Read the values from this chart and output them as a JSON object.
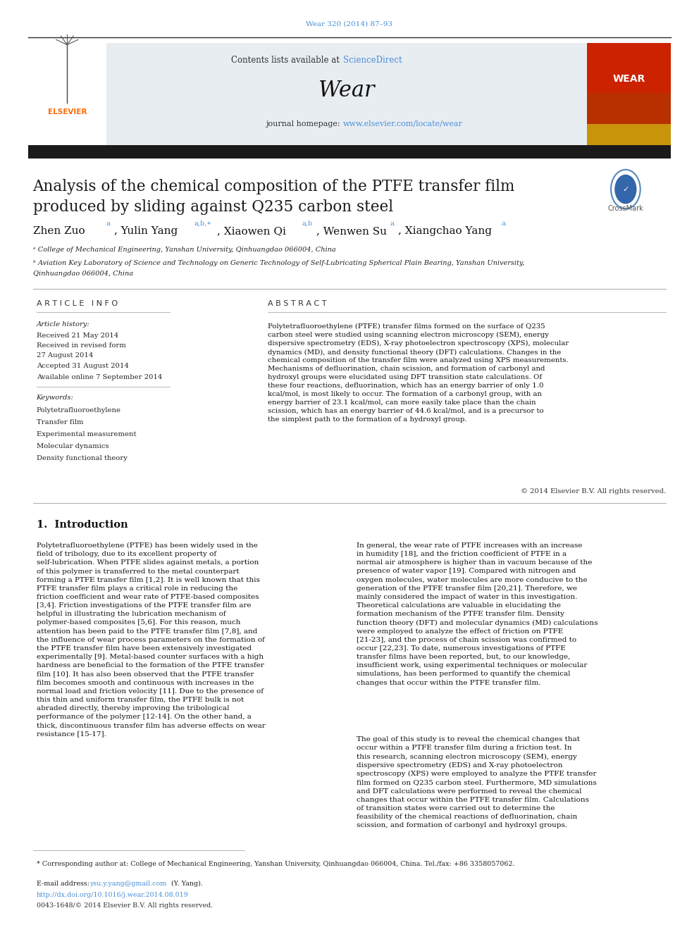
{
  "page_bg": "#ffffff",
  "header_line_color": "#2c2c2c",
  "journal_cite": "Wear 320 (2014) 87–93",
  "journal_cite_color": "#4a90d9",
  "header_bg": "#e8edf2",
  "header_text1": "Contents lists available at ",
  "sciencedirect": "ScienceDirect",
  "sciencedirect_color": "#4a90d9",
  "journal_name": "Wear",
  "journal_homepage_prefix": "journal homepage: ",
  "journal_url": "www.elsevier.com/locate/wear",
  "journal_url_color": "#4a90d9",
  "black_bar_color": "#1a1a1a",
  "title_line1": "Analysis of the chemical composition of the PTFE transfer film",
  "title_line2": "produced by sliding against Q235 carbon steel",
  "title_color": "#1a1a1a",
  "affil_a": "ᵃ College of Mechanical Engineering, Yanshan University, Qinhuangdao 066004, China",
  "affil_b": "ᵇ Aviation Key Laboratory of Science and Technology on Generic Technology of Self-Lubricating Spherical Plain Bearing, Yanshan University,",
  "affil_b2": "Qinhuangdao 066004, China",
  "article_info_title": "A R T I C L E   I N F O",
  "abstract_title": "A B S T R A C T",
  "article_history_label": "Article history:",
  "received": "Received 21 May 2014",
  "revised": "Received in revised form",
  "revised2": "27 August 2014",
  "accepted": "Accepted 31 August 2014",
  "available": "Available online 7 September 2014",
  "keywords_label": "Keywords:",
  "kw1": "Polytetrafluoroethylene",
  "kw2": "Transfer film",
  "kw3": "Experimental measurement",
  "kw4": "Molecular dynamics",
  "kw5": "Density functional theory",
  "abstract_text": "Polytetrafluoroethylene (PTFE) transfer films formed on the surface of Q235 carbon steel were studied using scanning electron microscopy (SEM), energy dispersive spectrometry (EDS), X-ray photoelectron spectroscopy (XPS), molecular dynamics (MD), and density functional theory (DFT) calculations. Changes in the chemical composition of the transfer film were analyzed using XPS measurements. Mechanisms of defluorination, chain scission, and formation of carbonyl and hydroxyl groups were elucidated using DFT transition state calculations. Of these four reactions, defluorination, which has an energy barrier of only 1.0 kcal/mol, is most likely to occur. The formation of a carbonyl group, with an energy barrier of 23.1 kcal/mol, can more easily take place than the chain scission, which has an energy barrier of 44.6 kcal/mol, and is a precursor to the simplest path to the formation of a hydroxyl group.",
  "copyright": "© 2014 Elsevier B.V. All rights reserved.",
  "intro_title": "1.  Introduction",
  "intro_col1_p1": "    Polytetrafluoroethylene (PTFE) has been widely used in the field of tribology, due to its excellent property of self-lubrication. When PTFE slides against metals, a portion of this polymer is transferred to the metal counterpart forming a PTFE transfer film [1,2]. It is well known that this PTFE transfer film plays a critical role in reducing the friction coefficient and wear rate of PTFE-based composites [3,4]. Friction investigations of the PTFE transfer film are helpful in illustrating the lubrication mechanism of polymer-based composites [5,6]. For this reason, much attention has been paid to the PTFE transfer film [7,8], and the influence of wear process parameters on the formation of the PTFE transfer film have been extensively investigated experimentally [9]. Metal-based counter surfaces with a high hardness are beneficial to the formation of the PTFE transfer film [10]. It has also been observed that the PTFE transfer film becomes smooth and continuous with increases in the normal load and friction velocity [11]. Due to the presence of this thin and uniform transfer film, the PTFE bulk is not abraded directly, thereby improving the tribological performance of the polymer [12-14]. On the other hand, a thick, discontinuous transfer film has adverse effects on wear resistance [15-17].",
  "intro_col2_p1": "    In general, the wear rate of PTFE increases with an increase in humidity [18], and the friction coefficient of PTFE in a normal air atmosphere is higher than in vacuum because of the presence of water vapor [19]. Compared with nitrogen and oxygen molecules, water molecules are more conducive to the generation of the PTFE transfer film [20,21]. Therefore, we mainly considered the impact of water in this investigation. Theoretical calculations are valuable in elucidating the formation mechanism of the PTFE transfer film. Density function theory (DFT) and molecular dynamics (MD) calculations were employed to analyze the effect of friction on PTFE [21-23], and the process of chain scission was confirmed to occur [22,23]. To date, numerous investigations of PTFE transfer films have been reported, but, to our knowledge, insufficient work, using experimental techniques or molecular simulations, has been performed to quantify the chemical changes that occur within the PTFE transfer film.",
  "intro_col2_p2": "    The goal of this study is to reveal the chemical changes that occur within a PTFE transfer film during a friction test. In this research, scanning electron microscopy (SEM), energy dispersive spectrometry (EDS) and X-ray photoelectron spectroscopy (XPS) were employed to analyze the PTFE transfer film formed on Q235 carbon steel. Furthermore, MD simulations and DFT calculations were performed to reveal the chemical changes that occur within the PTFE transfer film. Calculations of transition states were carried out to determine the feasibility of the chemical reactions of defluorination, chain scission, and formation of carbonyl and hydroxyl groups.",
  "footnote_corresponding": "* Corresponding author at: College of Mechanical Engineering, Yanshan University, Qinhuangdao 066004, China. Tel./fax: +86 3358057062.",
  "footnote_email_label": "E-mail address: ",
  "footnote_email": "ysu.y.yang@gmail.com",
  "footnote_email_color": "#4a90d9",
  "footnote_email_end": " (Y. Yang).",
  "footnote_doi": "http://dx.doi.org/10.1016/j.wear.2014.08.019",
  "footnote_doi_color": "#4a90d9",
  "footnote_issn": "0043-1648/© 2014 Elsevier B.V. All rights reserved.",
  "elsevier_color": "#ff6600"
}
